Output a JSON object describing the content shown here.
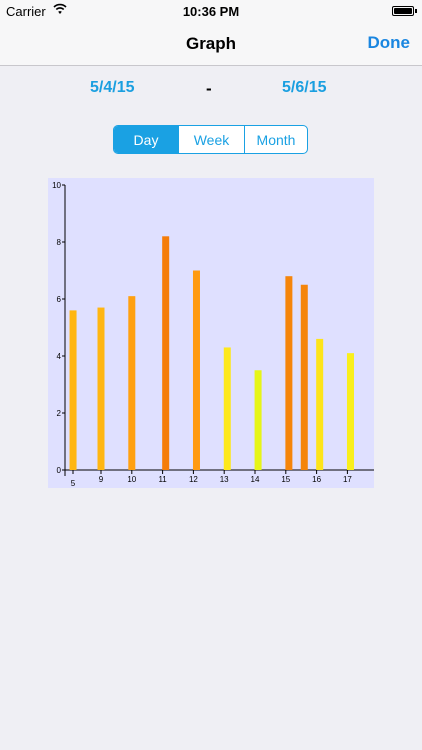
{
  "status_bar": {
    "carrier": "Carrier",
    "time": "10:36 PM"
  },
  "nav": {
    "title": "Graph",
    "done_label": "Done"
  },
  "date_range": {
    "start": "5/4/15",
    "separator": "-",
    "end": "5/6/15"
  },
  "segments": [
    {
      "label": "Day",
      "selected": true
    },
    {
      "label": "Week",
      "selected": false
    },
    {
      "label": "Month",
      "selected": false
    }
  ],
  "colors": {
    "accent": "#1aa1e3",
    "plot_background": "#dfe0ff"
  },
  "chart_data": {
    "type": "bar",
    "ylim": [
      0,
      10
    ],
    "yticks": [
      0,
      2,
      4,
      6,
      8,
      10
    ],
    "x_tick_labels": [
      "5",
      "9",
      "10",
      "11",
      "12",
      "13",
      "14",
      "15",
      "16",
      "17"
    ],
    "bars": [
      {
        "x": 5.1,
        "value": 5.6,
        "color": "#ffb612"
      },
      {
        "x": 9.0,
        "value": 5.7,
        "color": "#ffb612"
      },
      {
        "x": 10.0,
        "value": 6.1,
        "color": "#ffa010"
      },
      {
        "x": 11.1,
        "value": 8.2,
        "color": "#f57d0a"
      },
      {
        "x": 12.1,
        "value": 7.0,
        "color": "#ff9a10"
      },
      {
        "x": 13.1,
        "value": 4.3,
        "color": "#fde81c"
      },
      {
        "x": 14.1,
        "value": 3.5,
        "color": "#e6f518"
      },
      {
        "x": 15.1,
        "value": 6.8,
        "color": "#f5850b"
      },
      {
        "x": 15.6,
        "value": 6.5,
        "color": "#f5850b"
      },
      {
        "x": 16.1,
        "value": 4.6,
        "color": "#fde41a"
      },
      {
        "x": 17.1,
        "value": 4.1,
        "color": "#f9ef1c"
      }
    ]
  }
}
